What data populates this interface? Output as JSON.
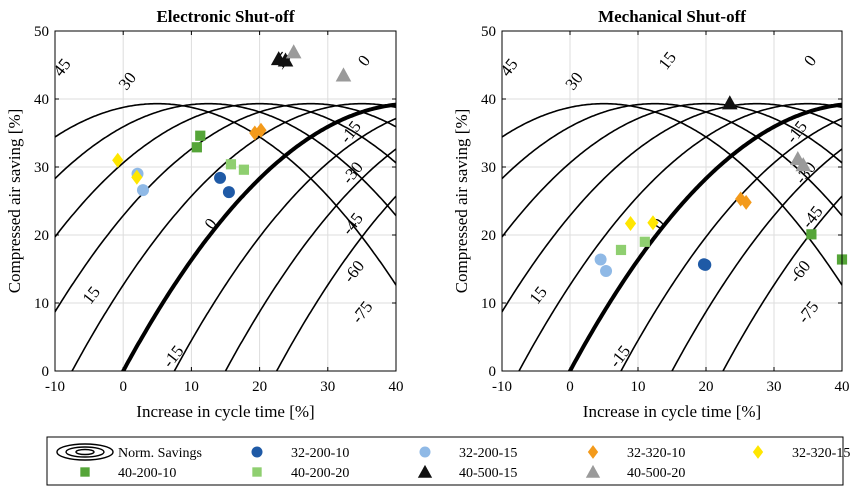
{
  "chart_data": [
    {
      "type": "scatter",
      "title": "Electronic Shut-off",
      "xlabel": "Increase in cycle time [%]",
      "ylabel": "Compressed air saving [%]",
      "xlim": [
        -10,
        40
      ],
      "ylim": [
        0,
        50
      ],
      "xticks": [
        "-10",
        "0",
        "10",
        "20",
        "30",
        "40"
      ],
      "yticks": [
        "0",
        "10",
        "20",
        "30",
        "40",
        "50"
      ],
      "grid": true,
      "contour_levels": [
        -75,
        -60,
        -45,
        -30,
        -15,
        0,
        15,
        30,
        45
      ],
      "contour_labels": [
        {
          "text": "45",
          "x": -8.8,
          "y": 44.5
        },
        {
          "text": "30",
          "x": 0.8,
          "y": 42.5
        },
        {
          "text": "15",
          "x": 23.5,
          "y": 45.5
        },
        {
          "text": "0",
          "x": 35.5,
          "y": 45.5
        },
        {
          "text": "-15",
          "x": 33.5,
          "y": 35
        },
        {
          "text": "-30",
          "x": 33.8,
          "y": 29
        },
        {
          "text": "-45",
          "x": 33.8,
          "y": 21.5
        },
        {
          "text": "-60",
          "x": 34,
          "y": 14.5
        },
        {
          "text": "-75",
          "x": 35.2,
          "y": 8.5
        },
        {
          "text": "0",
          "x": 13,
          "y": 21.5
        },
        {
          "text": "15",
          "x": -4.5,
          "y": 11
        },
        {
          "text": "-15",
          "x": 7.5,
          "y": 2
        }
      ],
      "series": [
        {
          "name": "32-200-10",
          "marker": "circle",
          "color": "#1f5aa6",
          "points": [
            [
              14.2,
              28.4
            ],
            [
              15.5,
              26.3
            ]
          ]
        },
        {
          "name": "32-200-15",
          "marker": "circle",
          "color": "#8fb9e6",
          "points": [
            [
              2.1,
              29.0
            ],
            [
              2.9,
              26.6
            ]
          ]
        },
        {
          "name": "32-320-10",
          "marker": "diamond",
          "color": "#f39a1b",
          "points": [
            [
              19.3,
              35.0
            ],
            [
              20.2,
              35.4
            ]
          ]
        },
        {
          "name": "32-320-15",
          "marker": "diamond",
          "color": "#ffe600",
          "points": [
            [
              -0.8,
              31.0
            ],
            [
              2.0,
              28.5
            ]
          ]
        },
        {
          "name": "40-200-10",
          "marker": "square",
          "color": "#55a538",
          "points": [
            [
              10.8,
              32.9
            ],
            [
              11.3,
              34.6
            ]
          ]
        },
        {
          "name": "40-200-20",
          "marker": "square",
          "color": "#8fcf70",
          "points": [
            [
              15.8,
              30.4
            ],
            [
              17.7,
              29.6
            ]
          ]
        },
        {
          "name": "40-500-15",
          "marker": "triangle",
          "color": "#111111",
          "points": [
            [
              22.8,
              45.9
            ],
            [
              23.8,
              45.7
            ]
          ]
        },
        {
          "name": "40-500-20",
          "marker": "triangle",
          "color": "#9a9a9a",
          "points": [
            [
              25.0,
              46.9
            ],
            [
              32.3,
              43.5
            ]
          ]
        }
      ]
    },
    {
      "type": "scatter",
      "title": "Mechanical Shut-off",
      "xlabel": "Increase in cycle time [%]",
      "ylabel": "Compressed air saving [%]",
      "xlim": [
        -10,
        40
      ],
      "ylim": [
        0,
        50
      ],
      "xticks": [
        "-10",
        "0",
        "10",
        "20",
        "30",
        "40"
      ],
      "yticks": [
        "0",
        "10",
        "20",
        "30",
        "40",
        "50"
      ],
      "grid": true,
      "contour_levels": [
        -75,
        -60,
        -45,
        -30,
        -15,
        0,
        15,
        30,
        45
      ],
      "contour_labels": [
        {
          "text": "45",
          "x": -8.8,
          "y": 44.5
        },
        {
          "text": "30",
          "x": 0.8,
          "y": 42.5
        },
        {
          "text": "15",
          "x": 14.5,
          "y": 45.5
        },
        {
          "text": "0",
          "x": 35.5,
          "y": 45.5
        },
        {
          "text": "-15",
          "x": 33.5,
          "y": 35
        },
        {
          "text": "-30",
          "x": 34.8,
          "y": 29
        },
        {
          "text": "-45",
          "x": 35.8,
          "y": 22.5
        },
        {
          "text": "-60",
          "x": 34,
          "y": 14.5
        },
        {
          "text": "-75",
          "x": 35.2,
          "y": 8.5
        },
        {
          "text": "0",
          "x": 13.2,
          "y": 21.5
        },
        {
          "text": "15",
          "x": -4.5,
          "y": 11
        },
        {
          "text": "-15",
          "x": 7.5,
          "y": 2
        }
      ],
      "series": [
        {
          "name": "32-200-10",
          "marker": "circle",
          "color": "#1f5aa6",
          "points": [
            [
              19.9,
              15.6
            ],
            [
              19.7,
              15.7
            ]
          ]
        },
        {
          "name": "32-200-15",
          "marker": "circle",
          "color": "#8fb9e6",
          "points": [
            [
              4.5,
              16.4
            ],
            [
              5.3,
              14.7
            ]
          ]
        },
        {
          "name": "32-320-10",
          "marker": "diamond",
          "color": "#f39a1b",
          "points": [
            [
              25.1,
              25.3
            ],
            [
              25.9,
              24.8
            ]
          ]
        },
        {
          "name": "32-320-15",
          "marker": "diamond",
          "color": "#ffe600",
          "points": [
            [
              8.9,
              21.7
            ],
            [
              12.2,
              21.8
            ]
          ]
        },
        {
          "name": "40-200-10",
          "marker": "square",
          "color": "#55a538",
          "points": [
            [
              35.5,
              20.1
            ],
            [
              40.0,
              16.4
            ]
          ]
        },
        {
          "name": "40-200-20",
          "marker": "square",
          "color": "#8fcf70",
          "points": [
            [
              7.5,
              17.8
            ],
            [
              11.0,
              19.0
            ]
          ]
        },
        {
          "name": "40-500-15",
          "marker": "triangle",
          "color": "#111111",
          "points": [
            [
              23.5,
              39.4
            ]
          ]
        },
        {
          "name": "40-500-20",
          "marker": "triangle",
          "color": "#9a9a9a",
          "points": [
            [
              33.5,
              31.2
            ],
            [
              34.3,
              30.3
            ]
          ]
        }
      ]
    }
  ],
  "legend": {
    "placement": "bottom",
    "entries": [
      {
        "label": "Norm. Savings",
        "marker": "contour",
        "color": "#000000"
      },
      {
        "label": "32-200-10",
        "marker": "circle",
        "color": "#1f5aa6"
      },
      {
        "label": "32-200-15",
        "marker": "circle",
        "color": "#8fb9e6"
      },
      {
        "label": "32-320-10",
        "marker": "diamond",
        "color": "#f39a1b"
      },
      {
        "label": "32-320-15",
        "marker": "diamond",
        "color": "#ffe600"
      },
      {
        "label": "40-200-10",
        "marker": "square",
        "color": "#55a538"
      },
      {
        "label": "40-200-20",
        "marker": "square",
        "color": "#8fcf70"
      },
      {
        "label": "40-500-15",
        "marker": "triangle",
        "color": "#111111"
      },
      {
        "label": "40-500-20",
        "marker": "triangle",
        "color": "#9a9a9a"
      }
    ]
  }
}
